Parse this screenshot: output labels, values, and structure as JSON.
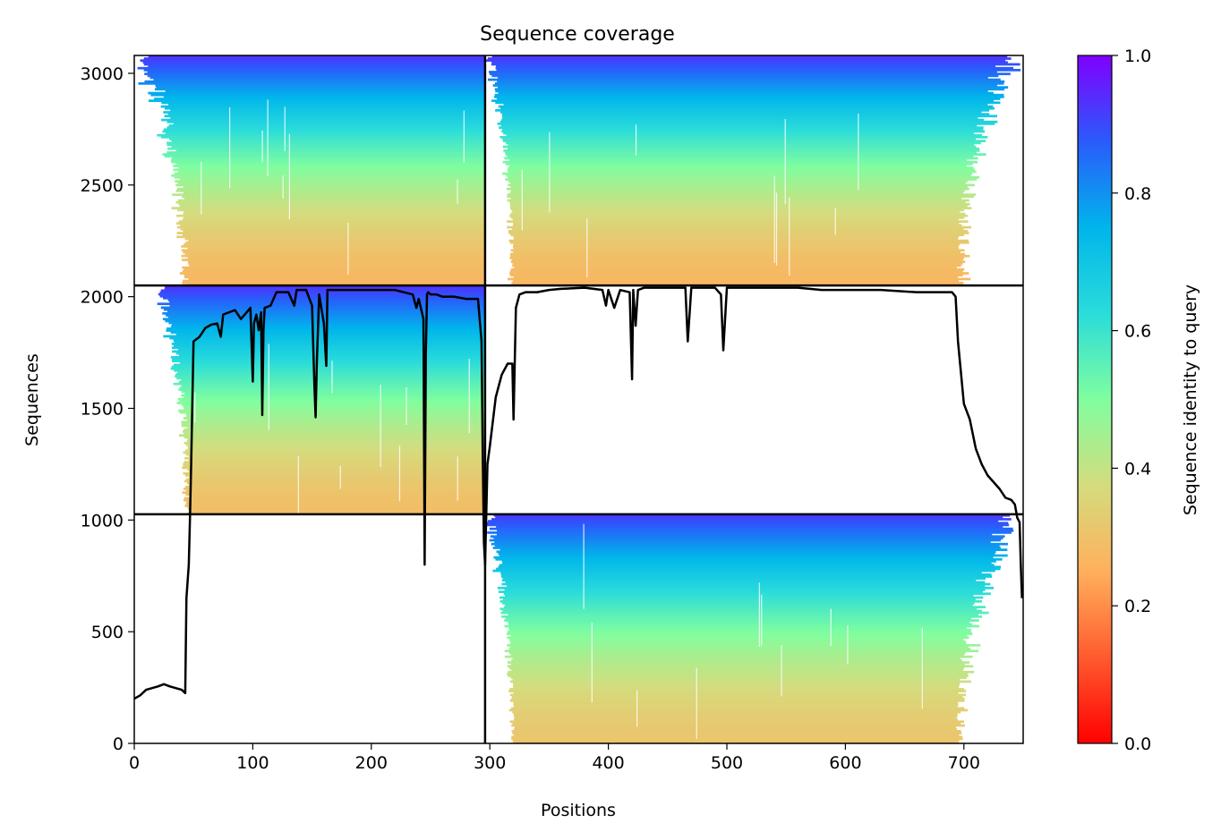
{
  "chart_data": {
    "type": "heatmap",
    "title": "Sequence coverage",
    "xlabel": "Positions",
    "ylabel": "Sequences",
    "xlim": [
      0,
      750
    ],
    "ylim": [
      0,
      3080
    ],
    "xticks": [
      "0",
      "100",
      "200",
      "300",
      "400",
      "500",
      "600",
      "700"
    ],
    "yticks": [
      "0",
      "500",
      "1000",
      "1500",
      "2000",
      "2500",
      "3000"
    ],
    "colorbar": {
      "label": "Sequence identity to query",
      "range": [
        0.0,
        1.0
      ],
      "ticks": [
        "0.0",
        "0.2",
        "0.4",
        "0.6",
        "0.8",
        "1.0"
      ],
      "colormap": "rainbow"
    },
    "divider_x": 296,
    "divider_y": [
      1026,
      2050
    ],
    "blocks": [
      {
        "name": "lower-right",
        "x0": 296,
        "x1": 750,
        "y0": 0,
        "y1": 1026,
        "identity_bottom": 0.31,
        "identity_top": 0.92,
        "full_start": 321,
        "full_end": 693,
        "min_start": 296,
        "max_end": 748
      },
      {
        "name": "middle-left",
        "x0": 0,
        "x1": 296,
        "y0": 1026,
        "y1": 2050,
        "identity_bottom": 0.29,
        "identity_top": 0.93,
        "full_start": 47,
        "full_end": 296,
        "min_start": 18,
        "max_end": 296
      },
      {
        "name": "upper-left",
        "x0": 0,
        "x1": 296,
        "y0": 2050,
        "y1": 3080,
        "identity_bottom": 0.27,
        "identity_top": 0.93,
        "full_start": 47,
        "full_end": 296,
        "min_start": 0,
        "max_end": 296
      },
      {
        "name": "upper-right",
        "x0": 296,
        "x1": 750,
        "y0": 2050,
        "y1": 3080,
        "identity_bottom": 0.27,
        "identity_top": 0.93,
        "full_start": 321,
        "full_end": 693,
        "min_start": 296,
        "max_end": 748
      }
    ],
    "coverage_line": {
      "x": [
        0,
        5,
        10,
        20,
        25,
        30,
        40,
        43,
        44,
        46,
        47,
        48,
        50,
        55,
        60,
        65,
        70,
        73,
        75,
        80,
        85,
        90,
        98,
        100,
        101,
        103,
        105,
        107,
        108,
        109,
        110,
        115,
        120,
        130,
        135,
        137,
        140,
        145,
        150,
        152,
        153,
        154,
        156,
        160,
        162,
        163,
        165,
        170,
        180,
        190,
        200,
        220,
        235,
        238,
        240,
        244,
        245,
        246,
        247,
        248,
        250,
        255,
        260,
        270,
        280,
        290,
        293,
        294,
        295,
        296,
        298,
        300,
        305,
        310,
        315,
        319,
        320,
        322,
        325,
        330,
        340,
        350,
        360,
        380,
        395,
        398,
        400,
        405,
        410,
        418,
        420,
        421,
        423,
        425,
        430,
        440,
        450,
        460,
        465,
        467,
        470,
        475,
        480,
        490,
        495,
        497,
        500,
        505,
        510,
        520,
        530,
        550,
        560,
        580,
        600,
        630,
        660,
        680,
        690,
        693,
        695,
        700,
        705,
        710,
        715,
        720,
        730,
        735,
        740,
        743,
        744,
        745,
        746,
        747,
        748,
        749
      ],
      "y": [
        200,
        215,
        240,
        255,
        265,
        255,
        240,
        225,
        650,
        800,
        1010,
        1250,
        1800,
        1820,
        1860,
        1875,
        1880,
        1820,
        1920,
        1930,
        1940,
        1900,
        1950,
        1620,
        1880,
        1920,
        1850,
        1930,
        1470,
        1850,
        1950,
        1960,
        2020,
        2020,
        1960,
        2030,
        2030,
        2030,
        1960,
        1600,
        1460,
        1700,
        2010,
        1880,
        1690,
        2030,
        2030,
        2030,
        2030,
        2030,
        2030,
        2030,
        2010,
        1950,
        1990,
        1900,
        800,
        1750,
        2010,
        2020,
        2010,
        2010,
        2000,
        2000,
        1990,
        1990,
        1800,
        1300,
        900,
        800,
        1250,
        1330,
        1550,
        1650,
        1700,
        1700,
        1450,
        1950,
        2010,
        2020,
        2020,
        2030,
        2035,
        2040,
        2030,
        1960,
        2030,
        1950,
        2030,
        2020,
        1630,
        2030,
        1870,
        2030,
        2040,
        2040,
        2040,
        2040,
        2040,
        1800,
        2040,
        2040,
        2040,
        2040,
        2010,
        1760,
        2040,
        2040,
        2040,
        2040,
        2040,
        2040,
        2040,
        2030,
        2030,
        2030,
        2020,
        2020,
        2020,
        2000,
        1800,
        1520,
        1450,
        1320,
        1250,
        1200,
        1140,
        1100,
        1090,
        1070,
        1040,
        1010,
        1000,
        990,
        800,
        650
      ]
    }
  }
}
